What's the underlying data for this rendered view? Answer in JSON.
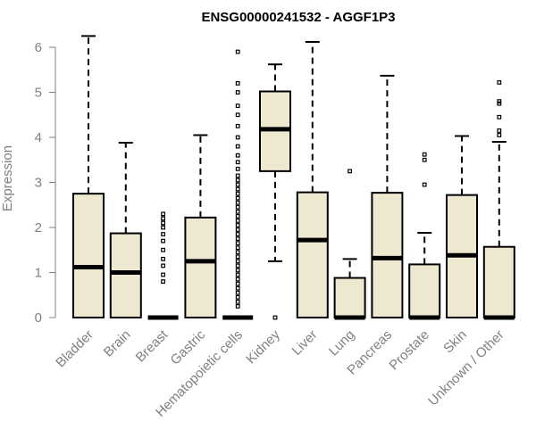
{
  "chart_data": {
    "type": "boxplot",
    "title": "ENSG00000241532 - AGGF1P3",
    "xlabel": "",
    "ylabel": "Expression",
    "ylim": [
      0,
      6.2
    ],
    "yticks": [
      0,
      1,
      2,
      3,
      4,
      5,
      6
    ],
    "grid": false,
    "colors": {
      "box_fill": "#efe8d0",
      "stroke": "#000000",
      "axis_text": "#808080"
    },
    "categories": [
      "Bladder",
      "Brain",
      "Breast",
      "Gastric",
      "Hematopoietic cells",
      "Kidney",
      "Liver",
      "Lung",
      "Pancreas",
      "Prostate",
      "Skin",
      "Unknown / Other"
    ],
    "series": [
      {
        "category": "Bladder",
        "whisker_low": 0,
        "q1": 0,
        "median": 1.12,
        "q3": 2.75,
        "whisker_high": 6.25,
        "outliers": []
      },
      {
        "category": "Brain",
        "whisker_low": 0,
        "q1": 0,
        "median": 1.0,
        "q3": 1.87,
        "whisker_high": 3.88,
        "outliers": []
      },
      {
        "category": "Breast",
        "whisker_low": 0,
        "q1": 0,
        "median": 0,
        "q3": 0,
        "whisker_high": 0,
        "outliers": [
          0.8,
          0.95,
          1.15,
          1.3,
          1.5,
          1.7,
          1.85,
          2.0,
          2.1,
          2.2,
          2.3
        ]
      },
      {
        "category": "Gastric",
        "whisker_low": 0,
        "q1": 0,
        "median": 1.25,
        "q3": 2.22,
        "whisker_high": 4.05,
        "outliers": []
      },
      {
        "category": "Hematopoietic cells",
        "whisker_low": 0,
        "q1": 0,
        "median": 0,
        "q3": 0,
        "whisker_high": 0,
        "outliers": [
          0.25,
          0.35,
          0.45,
          0.55,
          0.65,
          0.75,
          0.85,
          0.95,
          1.05,
          1.15,
          1.25,
          1.35,
          1.45,
          1.55,
          1.65,
          1.75,
          1.85,
          1.95,
          2.05,
          2.15,
          2.25,
          2.35,
          2.45,
          2.55,
          2.65,
          2.75,
          2.85,
          2.95,
          3.05,
          3.15,
          3.3,
          3.45,
          3.6,
          3.8,
          4.0,
          4.25,
          4.5,
          4.7,
          5.0,
          5.2,
          5.9
        ]
      },
      {
        "category": "Kidney",
        "whisker_low": 1.25,
        "q1": 3.25,
        "median": 4.18,
        "q3": 5.02,
        "whisker_high": 5.62,
        "outliers": [
          0
        ]
      },
      {
        "category": "Liver",
        "whisker_low": 0,
        "q1": 0,
        "median": 1.72,
        "q3": 2.78,
        "whisker_high": 6.12,
        "outliers": []
      },
      {
        "category": "Lung",
        "whisker_low": 0,
        "q1": 0,
        "median": 0,
        "q3": 0.88,
        "whisker_high": 1.3,
        "outliers": [
          3.25
        ]
      },
      {
        "category": "Pancreas",
        "whisker_low": 0,
        "q1": 0,
        "median": 1.32,
        "q3": 2.77,
        "whisker_high": 5.37,
        "outliers": []
      },
      {
        "category": "Prostate",
        "whisker_low": 0,
        "q1": 0,
        "median": 0,
        "q3": 1.18,
        "whisker_high": 1.88,
        "outliers": [
          2.95,
          3.5,
          3.62
        ]
      },
      {
        "category": "Skin",
        "whisker_low": 0,
        "q1": 0,
        "median": 1.38,
        "q3": 2.72,
        "whisker_high": 4.03,
        "outliers": []
      },
      {
        "category": "Unknown / Other",
        "whisker_low": 0,
        "q1": 0,
        "median": 0,
        "q3": 1.57,
        "whisker_high": 3.9,
        "outliers": [
          4.05,
          4.15,
          4.45,
          4.75,
          4.8,
          5.22
        ]
      }
    ]
  }
}
